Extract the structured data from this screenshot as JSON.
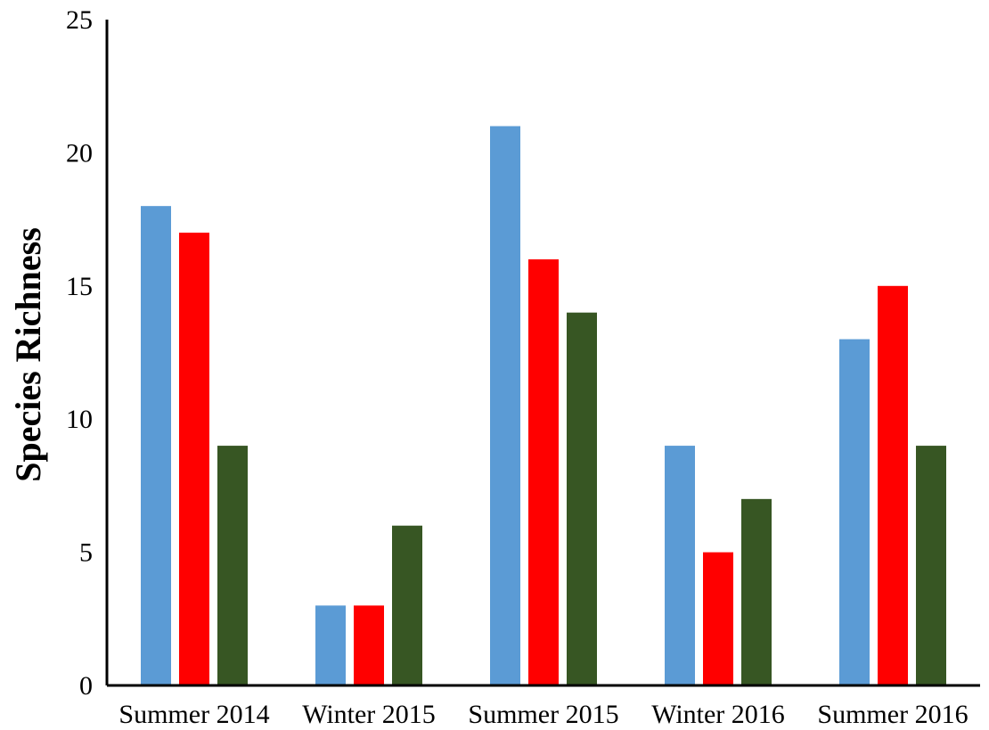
{
  "chart_data": {
    "type": "bar",
    "title": "",
    "xlabel": "",
    "ylabel": "Species Richness",
    "ylim": [
      0,
      25
    ],
    "yticks": [
      0,
      5,
      10,
      15,
      20,
      25
    ],
    "grid": false,
    "legend": "none",
    "categories": [
      "Summer 2014",
      "Winter 2015",
      "Summer 2015",
      "Winter 2016",
      "Summer 2016"
    ],
    "series": [
      {
        "values": [
          18,
          3,
          21,
          9,
          13
        ],
        "color": "#5b9bd5"
      },
      {
        "values": [
          17,
          3,
          16,
          5,
          15
        ],
        "color": "#ff0000"
      },
      {
        "values": [
          9,
          6,
          14,
          7,
          9
        ],
        "color": "#375623"
      }
    ]
  }
}
